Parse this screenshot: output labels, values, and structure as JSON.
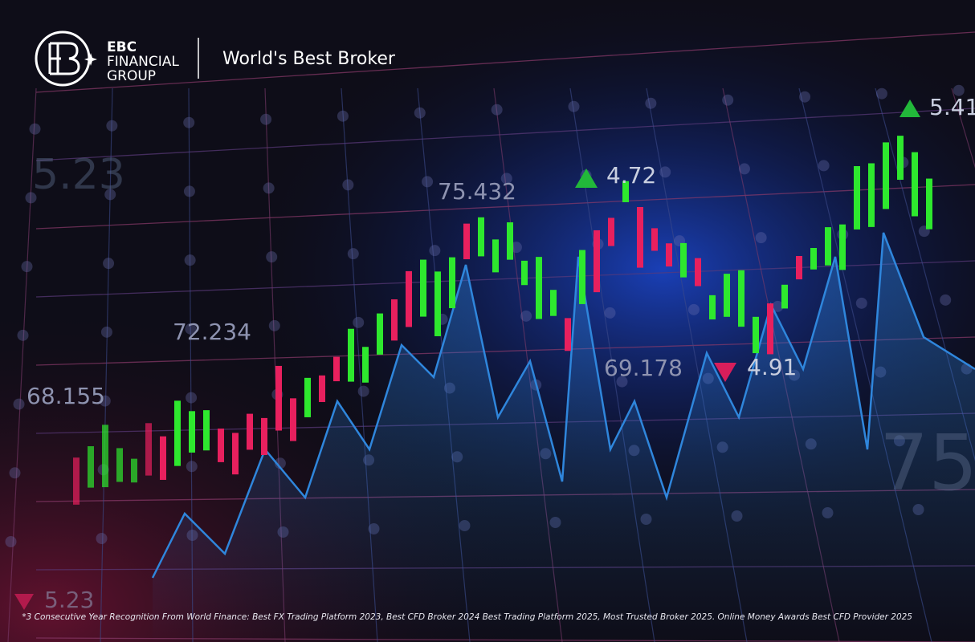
{
  "brand": {
    "line1": "EBC",
    "line2": "FINANCIAL",
    "line3": "GROUP",
    "tagline": "World's Best Broker"
  },
  "chart_labels": {
    "top_right": "5.41",
    "up_mid": "4.72",
    "mid_top": "75.432",
    "left_mid": "72.234",
    "left": "68.155",
    "mid_low": "69.178",
    "down_mid": "4.91",
    "bottom_left": "5.23",
    "faint_top_left": "5.23",
    "faint_right": "75"
  },
  "footnote": "*3 Consecutive Year Recognition From World Finance: Best FX Trading Platform 2023, Best CFD Broker 2024 Best Trading Platform 2025, Most Trusted Broker 2025.  Online Money Awards Best CFD Provider 2025"
}
